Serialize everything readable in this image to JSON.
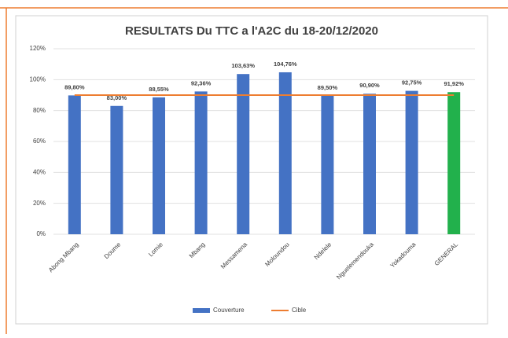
{
  "chart_data": {
    "type": "bar",
    "title": "RESULTATS Du TTC a l'A2C du 18-20/12/2020",
    "categories": [
      "Abong Mbang",
      "Doume",
      "Lomie",
      "Mbang",
      "Messamena",
      "Moloundou",
      "Ndelele",
      "Nguelemendouka",
      "Yokadouma",
      "GENERAL"
    ],
    "series": [
      {
        "name": "Couverture",
        "color": "#4472c4",
        "colors": [
          "#4472c4",
          "#4472c4",
          "#4472c4",
          "#4472c4",
          "#4472c4",
          "#4472c4",
          "#4472c4",
          "#4472c4",
          "#4472c4",
          "#22b14c"
        ],
        "values": [
          89.8,
          83.0,
          88.55,
          92.36,
          103.63,
          104.76,
          89.5,
          90.9,
          92.75,
          91.92
        ],
        "value_labels": [
          "89,80%",
          "83,00%",
          "88,55%",
          "92,36%",
          "103,63%",
          "104,76%",
          "89,50%",
          "90,90%",
          "92,75%",
          "91,92%"
        ]
      },
      {
        "name": "Cible",
        "type": "line",
        "color": "#ed7d31",
        "values": [
          90,
          90,
          90,
          90,
          90,
          90,
          90,
          90,
          90,
          90
        ]
      }
    ],
    "ylim": [
      0,
      120
    ],
    "yticks": [
      {
        "value": 0,
        "label": "0%"
      },
      {
        "value": 20,
        "label": "20%"
      },
      {
        "value": 40,
        "label": "40%"
      },
      {
        "value": 60,
        "label": "60%"
      },
      {
        "value": 80,
        "label": "80%"
      },
      {
        "value": 100,
        "label": "100%"
      },
      {
        "value": 120,
        "label": "120%"
      }
    ],
    "grid": true,
    "legend": "bottom"
  }
}
